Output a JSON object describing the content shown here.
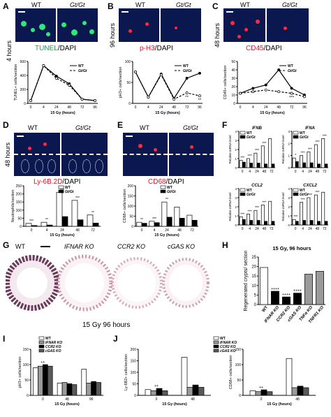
{
  "panels": {
    "A": {
      "letter": "A",
      "wt": "WT",
      "gt": "Gt/Gt",
      "time": "4 hours",
      "stain1": "TUNEL",
      "stain2": "/DAPI"
    },
    "B": {
      "letter": "B",
      "wt": "WT",
      "gt": "Gt/Gt",
      "time": "96 hours",
      "stain1": "p-H3",
      "stain2": "/DAPI"
    },
    "C": {
      "letter": "C",
      "wt": "WT",
      "gt": "Gt/Gt",
      "time": "48 hours",
      "stain1": "CD45",
      "stain2": "/DAPI"
    },
    "D": {
      "letter": "D",
      "wt": "WT",
      "gt": "Gt/Gt",
      "time": "48 hours",
      "stain1": "Ly-6B.2D",
      "stain2": "/DAPI"
    },
    "E": {
      "letter": "E",
      "wt": "WT",
      "gt": "Gt/Gt",
      "stain1": "CD68",
      "stain2": "/DAPI"
    },
    "F": {
      "letter": "F"
    },
    "G": {
      "letter": "G",
      "labels": [
        "WT",
        "IFNAR KO",
        "CCR2 KO",
        "cGAS KO"
      ],
      "caption": "15 Gy 96 hours"
    },
    "H": {
      "letter": "H"
    },
    "I": {
      "letter": "I"
    },
    "J": {
      "letter": "J"
    }
  },
  "colors": {
    "green": "#2ee87a",
    "red": "#ff2a3c",
    "blue_bg": "#0b1850",
    "black": "#000000",
    "white": "#ffffff",
    "gray": "#9a9a9a"
  },
  "chart_data": [
    {
      "id": "A",
      "type": "line",
      "ylabel": "TUNEL+ cells/section",
      "xlabel": "15 Gy (hours)",
      "x": [
        0,
        4,
        24,
        48,
        72,
        96
      ],
      "ylim": [
        0,
        600
      ],
      "yticks": [
        0,
        200,
        400,
        600
      ],
      "series": [
        {
          "name": "WT",
          "values": [
            40,
            540,
            390,
            280,
            60,
            40
          ]
        },
        {
          "name": "Gt/Gt",
          "values": [
            40,
            540,
            360,
            260,
            60,
            40
          ]
        }
      ]
    },
    {
      "id": "B",
      "type": "line",
      "ylabel": "pH3+ cells/section",
      "xlabel": "15 Gy (hours)",
      "x": [
        0,
        4,
        24,
        48,
        72,
        96
      ],
      "ylim": [
        0,
        100
      ],
      "yticks": [
        0,
        50,
        100
      ],
      "series": [
        {
          "name": "WT",
          "values": [
            75,
            15,
            70,
            12,
            60,
            72
          ]
        },
        {
          "name": "Gt/Gt",
          "values": [
            75,
            15,
            68,
            10,
            25,
            18
          ]
        }
      ],
      "annotations": [
        "**",
        "**"
      ]
    },
    {
      "id": "C",
      "type": "line",
      "ylabel": "CD45+ cells/section",
      "xlabel": "15 Gy (hours)",
      "x": [
        0,
        4,
        24,
        48,
        72,
        96
      ],
      "ylim": [
        0,
        50
      ],
      "yticks": [
        0,
        10,
        20,
        30,
        40,
        50
      ],
      "series": [
        {
          "name": "WT",
          "values": [
            12,
            18,
            22,
            40,
            18,
            10
          ]
        },
        {
          "name": "Gt/Gt",
          "values": [
            12,
            14,
            16,
            14,
            12,
            8
          ]
        }
      ],
      "annotations": [
        "***"
      ]
    },
    {
      "id": "D",
      "type": "bar",
      "ylabel": "Neutrophils/section",
      "xlabel": "15 Gy (hours)",
      "categories": [
        "0",
        "4",
        "24",
        "48",
        "72"
      ],
      "ylim": [
        0,
        250
      ],
      "yticks": [
        0,
        50,
        100,
        150,
        200,
        250
      ],
      "series": [
        {
          "name": "WT",
          "values": [
            18,
            25,
            210,
            160,
            70
          ]
        },
        {
          "name": "Gt/Gt",
          "values": [
            5,
            8,
            60,
            40,
            20
          ]
        }
      ],
      "annotations": [
        "***",
        "**",
        "***",
        "***",
        "**"
      ]
    },
    {
      "id": "E",
      "type": "bar",
      "ylabel": "CD68+ cells/section",
      "xlabel": "15 Gy (hours)",
      "categories": [
        "0",
        "4",
        "24",
        "48",
        "72"
      ],
      "ylim": [
        0,
        200
      ],
      "yticks": [
        0,
        50,
        100,
        150,
        200
      ],
      "series": [
        {
          "name": "WT",
          "values": [
            20,
            25,
            120,
            95,
            55
          ]
        },
        {
          "name": "Gt/Gt",
          "values": [
            15,
            18,
            45,
            40,
            30
          ]
        }
      ],
      "annotations": [
        "**",
        "***",
        "**"
      ]
    },
    {
      "id": "F1",
      "type": "bar",
      "title": "IFNB",
      "ylabel": "Relative mRNA level",
      "categories": [
        "0",
        "4",
        "24",
        "48",
        "72"
      ],
      "ylim": [
        0,
        4
      ],
      "yticks": [
        0,
        1,
        2,
        3,
        4
      ],
      "series": [
        {
          "name": "WT",
          "values": [
            0.8,
            1.0,
            1.6,
            2.4,
            3.2
          ]
        },
        {
          "name": "Gt/Gt",
          "values": [
            0.6,
            0.5,
            0.5,
            0.4,
            0.4
          ]
        }
      ],
      "annotations": [
        "***",
        "***",
        "***",
        "***"
      ]
    },
    {
      "id": "F2",
      "type": "bar",
      "title": "IFNA",
      "ylabel": "Relative mRNA level",
      "categories": [
        "0",
        "4",
        "24",
        "48",
        "72"
      ],
      "ylim": [
        0,
        3
      ],
      "yticks": [
        0,
        1,
        2,
        3
      ],
      "series": [
        {
          "name": "WT",
          "values": [
            0.8,
            1.0,
            1.3,
            1.9,
            2.4
          ]
        },
        {
          "name": "Gt/Gt",
          "values": [
            0.5,
            0.4,
            0.4,
            0.3,
            0.3
          ]
        }
      ],
      "annotations": [
        "*",
        "***",
        "***",
        "***",
        "***"
      ]
    },
    {
      "id": "F3",
      "type": "bar",
      "title": "CCL2",
      "ylabel": "Relative mRNA level",
      "categories": [
        "0",
        "4",
        "24",
        "48",
        "72"
      ],
      "ylim": [
        0,
        4
      ],
      "yticks": [
        0,
        1,
        2,
        3,
        4
      ],
      "series": [
        {
          "name": "WT",
          "values": [
            0.9,
            1.2,
            1.6,
            2.2,
            2.6
          ]
        },
        {
          "name": "Gt/Gt",
          "values": [
            0.6,
            0.5,
            0.5,
            0.4,
            0.4
          ]
        }
      ],
      "annotations": [
        "***",
        "***",
        "***",
        "***"
      ]
    },
    {
      "id": "F4",
      "type": "bar",
      "title": "CXCL2",
      "ylabel": "Relative mRNA level",
      "categories": [
        "0",
        "4",
        "24",
        "48",
        "72"
      ],
      "ylim": [
        0,
        4
      ],
      "yticks": [
        0,
        1,
        2,
        3,
        4
      ],
      "series": [
        {
          "name": "WT",
          "values": [
            0.6,
            2.5,
            3.0,
            3.3,
            3.6
          ]
        },
        {
          "name": "Gt/Gt",
          "values": [
            0.4,
            0.5,
            0.5,
            0.4,
            0.4
          ]
        }
      ],
      "annotations": [
        "***",
        "***",
        "***",
        "***"
      ]
    },
    {
      "id": "H",
      "type": "bar",
      "title": "15 Gy, 96 hours",
      "ylabel": "Regenerated crypts/ section",
      "categories": [
        "WT",
        "IFNAR KO",
        "CCR2 KO",
        "cGAS KO",
        "TNFα KO",
        "TNFR1 KO"
      ],
      "ylim": [
        0,
        25
      ],
      "yticks": [
        0,
        5,
        10,
        15,
        20,
        25
      ],
      "values": [
        19.5,
        7,
        4,
        6,
        16,
        17.5
      ],
      "colors": [
        "#ffffff",
        "#000000",
        "#000000",
        "#000000",
        "#9a9a9a",
        "#9a9a9a"
      ],
      "annotations": [
        "++++",
        "++++",
        "++++"
      ]
    },
    {
      "id": "I",
      "type": "bar",
      "ylabel": "pH3+ cells/section",
      "xlabel": "15 Gy (hours)",
      "categories": [
        "0",
        "48",
        "96"
      ],
      "ylim": [
        0,
        150
      ],
      "yticks": [
        0,
        50,
        100,
        150
      ],
      "series": [
        {
          "name": "WT",
          "values": [
            90,
            40,
            85
          ]
        },
        {
          "name": "IFNAR KO",
          "values": [
            95,
            42,
            40
          ]
        },
        {
          "name": "CCR2 KO",
          "values": [
            100,
            38,
            45
          ]
        },
        {
          "name": "cGAS KO",
          "values": [
            95,
            35,
            42
          ]
        }
      ],
      "annotations": [
        "++"
      ]
    },
    {
      "id": "J1",
      "type": "bar",
      "ylabel": "Ly-6B2+ cells/section",
      "xlabel": "15 Gy (hours)",
      "categories": [
        "0",
        "48"
      ],
      "ylim": [
        0,
        200
      ],
      "yticks": [
        0,
        50,
        100,
        150,
        200
      ],
      "series": [
        {
          "name": "WT",
          "values": [
            25,
            165
          ]
        },
        {
          "name": "IFNAR KO",
          "values": [
            20,
            35
          ]
        },
        {
          "name": "CCR2 KO",
          "values": [
            30,
            45
          ]
        },
        {
          "name": "cGAS KO",
          "values": [
            20,
            35
          ]
        }
      ],
      "annotations": [
        "++"
      ]
    },
    {
      "id": "J2",
      "type": "bar",
      "ylabel": "CD68+ cells/section",
      "xlabel": "15 Gy (hours)",
      "categories": [
        "0",
        "48"
      ],
      "ylim": [
        0,
        150
      ],
      "yticks": [
        0,
        50,
        100,
        150
      ],
      "series": [
        {
          "name": "WT",
          "values": [
            15,
            120
          ]
        },
        {
          "name": "IFNAR KO",
          "values": [
            12,
            25
          ]
        },
        {
          "name": "CCR2 KO",
          "values": [
            18,
            30
          ]
        },
        {
          "name": "cGAS KO",
          "values": [
            12,
            25
          ]
        }
      ],
      "annotations": [
        "++"
      ]
    }
  ]
}
